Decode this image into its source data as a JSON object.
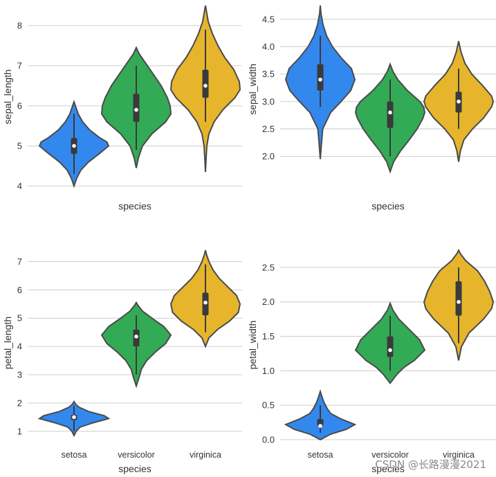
{
  "watermark": "CSDN @长路漫漫2021",
  "chart_data": [
    {
      "type": "violin",
      "xlabel": "species",
      "ylabel": "sepal_length",
      "categories": [
        "setosa",
        "versicolor",
        "virginica"
      ],
      "show_category_labels": false,
      "ylim": [
        3.95,
        8.5
      ],
      "yticks": [
        4,
        5,
        6,
        7,
        8
      ],
      "grid": true,
      "colors": [
        "#3388ee",
        "#33aa55",
        "#e6b52c"
      ],
      "violins": [
        {
          "category": "setosa",
          "min": 4.0,
          "max": 6.1,
          "q1": 4.8,
          "median": 5.0,
          "q3": 5.2,
          "whisker_low": 4.3,
          "whisker_high": 5.8,
          "density": [
            [
              4.0,
              0.0
            ],
            [
              4.2,
              0.08
            ],
            [
              4.4,
              0.2
            ],
            [
              4.6,
              0.42
            ],
            [
              4.8,
              0.72
            ],
            [
              5.0,
              1.0
            ],
            [
              5.1,
              0.95
            ],
            [
              5.2,
              0.75
            ],
            [
              5.4,
              0.45
            ],
            [
              5.6,
              0.25
            ],
            [
              5.8,
              0.12
            ],
            [
              6.0,
              0.04
            ],
            [
              6.1,
              0.0
            ]
          ]
        },
        {
          "category": "versicolor",
          "min": 4.45,
          "max": 7.45,
          "q1": 5.6,
          "median": 5.9,
          "q3": 6.3,
          "whisker_low": 4.9,
          "whisker_high": 7.0,
          "density": [
            [
              4.45,
              0.0
            ],
            [
              4.7,
              0.06
            ],
            [
              5.0,
              0.18
            ],
            [
              5.3,
              0.45
            ],
            [
              5.6,
              0.85
            ],
            [
              5.8,
              1.0
            ],
            [
              6.0,
              0.98
            ],
            [
              6.2,
              0.9
            ],
            [
              6.5,
              0.72
            ],
            [
              6.8,
              0.48
            ],
            [
              7.1,
              0.24
            ],
            [
              7.3,
              0.08
            ],
            [
              7.45,
              0.0
            ]
          ]
        },
        {
          "category": "virginica",
          "min": 4.35,
          "max": 8.5,
          "q1": 6.2,
          "median": 6.5,
          "q3": 6.9,
          "whisker_low": 5.6,
          "whisker_high": 7.9,
          "density": [
            [
              4.35,
              0.0
            ],
            [
              4.7,
              0.02
            ],
            [
              5.0,
              0.04
            ],
            [
              5.3,
              0.1
            ],
            [
              5.6,
              0.25
            ],
            [
              5.9,
              0.5
            ],
            [
              6.2,
              0.85
            ],
            [
              6.4,
              1.0
            ],
            [
              6.6,
              0.98
            ],
            [
              6.9,
              0.82
            ],
            [
              7.2,
              0.56
            ],
            [
              7.5,
              0.36
            ],
            [
              7.8,
              0.2
            ],
            [
              8.1,
              0.08
            ],
            [
              8.35,
              0.03
            ],
            [
              8.5,
              0.0
            ]
          ]
        }
      ]
    },
    {
      "type": "violin",
      "xlabel": "species",
      "ylabel": "sepal_width",
      "categories": [
        "setosa",
        "versicolor",
        "virginica"
      ],
      "show_category_labels": false,
      "ylim": [
        1.7,
        4.75
      ],
      "yticks": [
        "2.0",
        "2.5",
        "3.0",
        "3.5",
        "4.0",
        "4.5"
      ],
      "grid": true,
      "colors": [
        "#3388ee",
        "#33aa55",
        "#e6b52c"
      ],
      "violins": [
        {
          "category": "setosa",
          "min": 1.95,
          "max": 4.75,
          "q1": 3.2,
          "median": 3.4,
          "q3": 3.68,
          "whisker_low": 2.9,
          "whisker_high": 4.2,
          "density": [
            [
              1.95,
              0.0
            ],
            [
              2.2,
              0.03
            ],
            [
              2.5,
              0.07
            ],
            [
              2.8,
              0.3
            ],
            [
              3.0,
              0.6
            ],
            [
              3.2,
              0.88
            ],
            [
              3.4,
              1.0
            ],
            [
              3.6,
              0.9
            ],
            [
              3.8,
              0.6
            ],
            [
              4.0,
              0.35
            ],
            [
              4.2,
              0.18
            ],
            [
              4.4,
              0.08
            ],
            [
              4.6,
              0.02
            ],
            [
              4.75,
              0.0
            ]
          ]
        },
        {
          "category": "versicolor",
          "min": 1.72,
          "max": 3.68,
          "q1": 2.52,
          "median": 2.8,
          "q3": 3.0,
          "whisker_low": 2.0,
          "whisker_high": 3.4,
          "density": [
            [
              1.72,
              0.0
            ],
            [
              1.9,
              0.1
            ],
            [
              2.1,
              0.3
            ],
            [
              2.3,
              0.55
            ],
            [
              2.5,
              0.78
            ],
            [
              2.7,
              0.95
            ],
            [
              2.8,
              1.0
            ],
            [
              2.9,
              0.97
            ],
            [
              3.0,
              0.86
            ],
            [
              3.2,
              0.5
            ],
            [
              3.4,
              0.22
            ],
            [
              3.55,
              0.08
            ],
            [
              3.68,
              0.0
            ]
          ]
        },
        {
          "category": "virginica",
          "min": 1.9,
          "max": 4.1,
          "q1": 2.8,
          "median": 3.0,
          "q3": 3.18,
          "whisker_low": 2.5,
          "whisker_high": 3.6,
          "density": [
            [
              1.9,
              0.0
            ],
            [
              2.1,
              0.05
            ],
            [
              2.3,
              0.15
            ],
            [
              2.5,
              0.4
            ],
            [
              2.7,
              0.72
            ],
            [
              2.9,
              0.95
            ],
            [
              3.0,
              1.0
            ],
            [
              3.1,
              0.95
            ],
            [
              3.3,
              0.68
            ],
            [
              3.5,
              0.38
            ],
            [
              3.7,
              0.18
            ],
            [
              3.9,
              0.07
            ],
            [
              4.1,
              0.0
            ]
          ]
        }
      ]
    },
    {
      "type": "violin",
      "xlabel": "species",
      "ylabel": "petal_length",
      "categories": [
        "setosa",
        "versicolor",
        "virginica"
      ],
      "show_category_labels": true,
      "ylim": [
        0.85,
        7.4
      ],
      "yticks": [
        1,
        2,
        3,
        4,
        5,
        6,
        7
      ],
      "grid": true,
      "colors": [
        "#3388ee",
        "#33aa55",
        "#e6b52c"
      ],
      "violins": [
        {
          "category": "setosa",
          "min": 0.85,
          "max": 2.05,
          "q1": 1.4,
          "median": 1.5,
          "q3": 1.58,
          "whisker_low": 1.0,
          "whisker_high": 1.9,
          "density": [
            [
              0.85,
              0.0
            ],
            [
              1.0,
              0.06
            ],
            [
              1.15,
              0.18
            ],
            [
              1.3,
              0.55
            ],
            [
              1.45,
              1.0
            ],
            [
              1.55,
              0.88
            ],
            [
              1.7,
              0.42
            ],
            [
              1.85,
              0.15
            ],
            [
              1.95,
              0.05
            ],
            [
              2.05,
              0.0
            ]
          ]
        },
        {
          "category": "versicolor",
          "min": 2.6,
          "max": 5.55,
          "q1": 4.0,
          "median": 4.35,
          "q3": 4.6,
          "whisker_low": 3.0,
          "whisker_high": 5.1,
          "density": [
            [
              2.6,
              0.0
            ],
            [
              2.9,
              0.08
            ],
            [
              3.2,
              0.15
            ],
            [
              3.5,
              0.3
            ],
            [
              3.8,
              0.55
            ],
            [
              4.1,
              0.85
            ],
            [
              4.4,
              1.0
            ],
            [
              4.7,
              0.8
            ],
            [
              5.0,
              0.45
            ],
            [
              5.25,
              0.18
            ],
            [
              5.45,
              0.05
            ],
            [
              5.55,
              0.0
            ]
          ]
        },
        {
          "category": "virginica",
          "min": 4.0,
          "max": 7.4,
          "q1": 5.1,
          "median": 5.55,
          "q3": 5.9,
          "whisker_low": 4.5,
          "whisker_high": 6.9,
          "density": [
            [
              4.0,
              0.0
            ],
            [
              4.3,
              0.1
            ],
            [
              4.6,
              0.35
            ],
            [
              4.9,
              0.7
            ],
            [
              5.2,
              0.95
            ],
            [
              5.5,
              1.0
            ],
            [
              5.8,
              0.9
            ],
            [
              6.1,
              0.65
            ],
            [
              6.4,
              0.4
            ],
            [
              6.7,
              0.22
            ],
            [
              7.0,
              0.1
            ],
            [
              7.25,
              0.03
            ],
            [
              7.4,
              0.0
            ]
          ]
        }
      ]
    },
    {
      "type": "violin",
      "xlabel": "species",
      "ylabel": "petal_width",
      "categories": [
        "setosa",
        "versicolor",
        "virginica"
      ],
      "show_category_labels": true,
      "ylim": [
        0.0,
        2.75
      ],
      "yticks": [
        "0.0",
        "0.5",
        "1.0",
        "1.5",
        "2.0",
        "2.5"
      ],
      "grid": true,
      "colors": [
        "#3388ee",
        "#33aa55",
        "#e6b52c"
      ],
      "violins": [
        {
          "category": "setosa",
          "min": 0.0,
          "max": 0.7,
          "q1": 0.2,
          "median": 0.2,
          "q3": 0.3,
          "whisker_low": 0.1,
          "whisker_high": 0.5,
          "density": [
            [
              0.0,
              0.0
            ],
            [
              0.08,
              0.3
            ],
            [
              0.15,
              0.75
            ],
            [
              0.22,
              1.0
            ],
            [
              0.3,
              0.6
            ],
            [
              0.38,
              0.3
            ],
            [
              0.45,
              0.2
            ],
            [
              0.55,
              0.1
            ],
            [
              0.65,
              0.03
            ],
            [
              0.7,
              0.0
            ]
          ]
        },
        {
          "category": "versicolor",
          "min": 0.82,
          "max": 1.98,
          "q1": 1.2,
          "median": 1.3,
          "q3": 1.5,
          "whisker_low": 1.0,
          "whisker_high": 1.8,
          "density": [
            [
              0.82,
              0.0
            ],
            [
              0.95,
              0.2
            ],
            [
              1.05,
              0.4
            ],
            [
              1.15,
              0.7
            ],
            [
              1.3,
              1.0
            ],
            [
              1.45,
              0.85
            ],
            [
              1.6,
              0.55
            ],
            [
              1.75,
              0.25
            ],
            [
              1.88,
              0.08
            ],
            [
              1.98,
              0.0
            ]
          ]
        },
        {
          "category": "virginica",
          "min": 1.15,
          "max": 2.75,
          "q1": 1.8,
          "median": 2.0,
          "q3": 2.3,
          "whisker_low": 1.4,
          "whisker_high": 2.5,
          "density": [
            [
              1.15,
              0.0
            ],
            [
              1.35,
              0.08
            ],
            [
              1.55,
              0.3
            ],
            [
              1.75,
              0.72
            ],
            [
              1.9,
              0.95
            ],
            [
              2.0,
              1.0
            ],
            [
              2.15,
              0.9
            ],
            [
              2.3,
              0.75
            ],
            [
              2.45,
              0.55
            ],
            [
              2.6,
              0.2
            ],
            [
              2.7,
              0.05
            ],
            [
              2.75,
              0.0
            ]
          ]
        }
      ]
    }
  ]
}
